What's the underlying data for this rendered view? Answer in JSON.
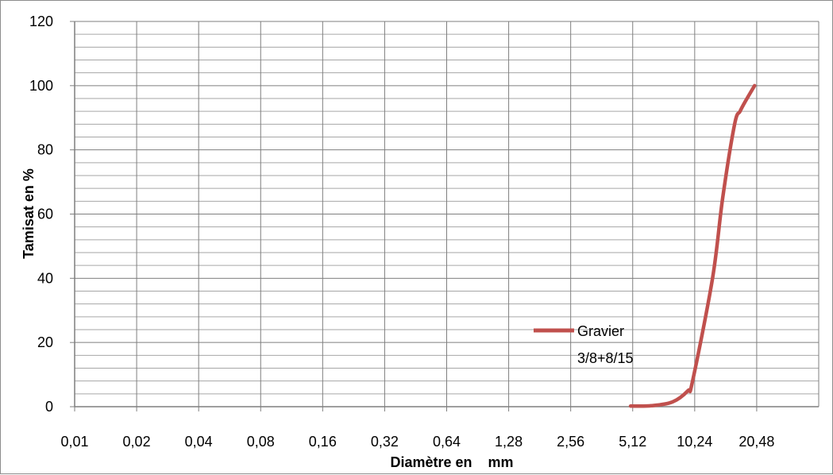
{
  "chart_data": {
    "type": "line",
    "xlabel": "Diamètre en    mm",
    "ylabel": "Tamisat en %",
    "x_scale": "log2",
    "x_ticks": [
      "0,01",
      "0,02",
      "0,04",
      "0,08",
      "0,16",
      "0,32",
      "0,64",
      "1,28",
      "2,56",
      "5,12",
      "10,24",
      "20,48"
    ],
    "x_tick_values": [
      0.01,
      0.02,
      0.04,
      0.08,
      0.16,
      0.32,
      0.64,
      1.28,
      2.56,
      5.12,
      10.24,
      20.48
    ],
    "y_ticks": [
      "0",
      "20",
      "40",
      "60",
      "80",
      "100",
      "120"
    ],
    "ylim": [
      0,
      120
    ],
    "grid": true,
    "legend_position": "right",
    "series": [
      {
        "name": "Gravier 3/8+8/15",
        "color": "#c0504d",
        "x": [
          5.0,
          6.3,
          8.0,
          9.5,
          10.0,
          12.5,
          14.0,
          16.0,
          17.0,
          18.0,
          20.0
        ],
        "y": [
          0.2,
          0.3,
          1.5,
          5.0,
          8.0,
          40.0,
          65.0,
          88.0,
          92.0,
          95.0,
          100.0
        ]
      }
    ]
  }
}
